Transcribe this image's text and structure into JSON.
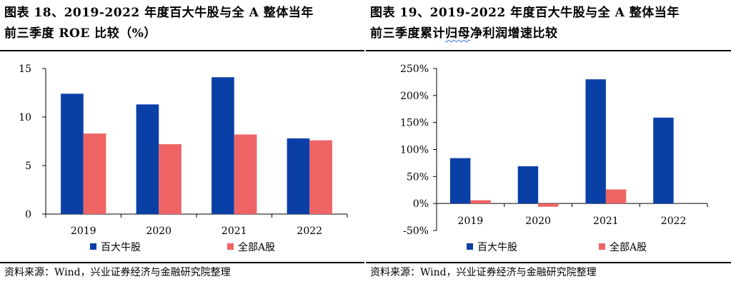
{
  "colors": {
    "series1": "#0a3fa6",
    "series2": "#ee6464"
  },
  "panels": [
    {
      "title_line1": "图表 18、2019-2022 年度百大牛股与全 A 整体当年",
      "title_line2": "前三季度 ROE 比较（%）",
      "source": "资料来源：Wind，兴业证券经济与金融研究院整理"
    },
    {
      "title_line1": "图表 19、2019-2022 年度百大牛股与全 A 整体当年",
      "title_line2_pre": "前三季度累计",
      "title_line2_wavy": "归母",
      "title_line2_post": "净利润增速比较",
      "source": "资料来源：Wind，兴业证券经济与金融研究院整理"
    }
  ],
  "chart_data": [
    {
      "type": "bar",
      "categories": [
        "2019",
        "2020",
        "2021",
        "2022"
      ],
      "series": [
        {
          "name": "百大牛股",
          "values": [
            12.4,
            11.3,
            14.1,
            7.8
          ]
        },
        {
          "name": "全部A股",
          "values": [
            8.3,
            7.2,
            8.2,
            7.6
          ]
        }
      ],
      "ylim": [
        0,
        15
      ],
      "yticks": [
        0,
        5,
        10,
        15
      ],
      "ytick_labels": [
        "0",
        "5",
        "10",
        "15"
      ],
      "legend": "bottom",
      "grid": false
    },
    {
      "type": "bar",
      "categories": [
        "2019",
        "2020",
        "2021",
        "2022"
      ],
      "series": [
        {
          "name": "百大牛股",
          "values": [
            84,
            69,
            230,
            159
          ]
        },
        {
          "name": "全部A股",
          "values": [
            6,
            -6,
            26,
            0
          ]
        }
      ],
      "ylim": [
        -50,
        250
      ],
      "yticks": [
        -50,
        0,
        50,
        100,
        150,
        200,
        250
      ],
      "ytick_labels": [
        "-50%",
        "0%",
        "50%",
        "100%",
        "150%",
        "200%",
        "250%"
      ],
      "legend": "bottom",
      "grid": false
    }
  ]
}
